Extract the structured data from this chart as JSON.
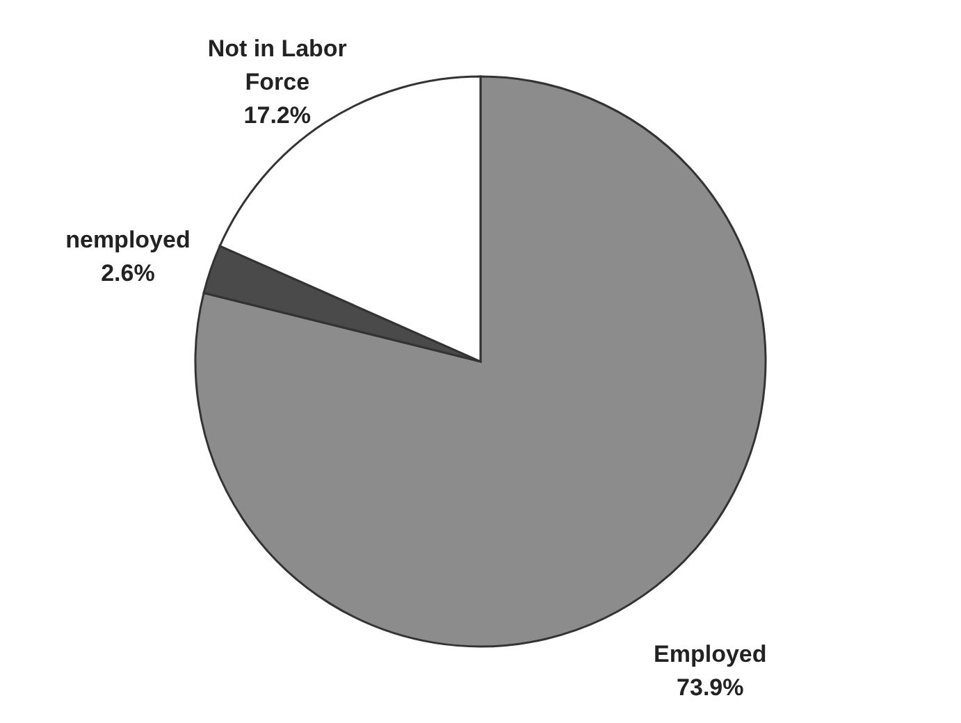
{
  "chart_data": {
    "type": "pie",
    "categories": [
      "Employed",
      "nemployed",
      "Not in Labor Force"
    ],
    "values": [
      73.9,
      2.6,
      17.2
    ],
    "colors": [
      "#8c8c8c",
      "#4a4a4a",
      "#ffffff"
    ],
    "value_labels": [
      "73.9%",
      "2.6%",
      "17.2%"
    ]
  }
}
